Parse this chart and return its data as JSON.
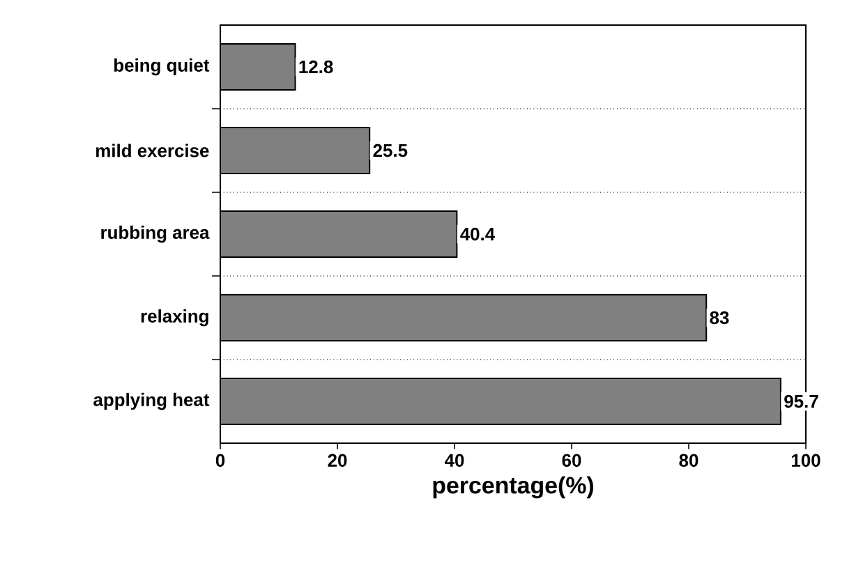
{
  "chart_data": {
    "type": "bar",
    "orientation": "horizontal",
    "categories": [
      "being quiet",
      "mild exercise",
      "rubbing area",
      "relaxing",
      "applying heat"
    ],
    "values": [
      12.8,
      25.5,
      40.4,
      83,
      95.7
    ],
    "color": "#808080",
    "xlim": [
      0,
      100
    ],
    "xticks": [
      0,
      20,
      40,
      60,
      80,
      100
    ],
    "xlabel": "percentage(%)",
    "grid": "y",
    "data_labels": true
  }
}
